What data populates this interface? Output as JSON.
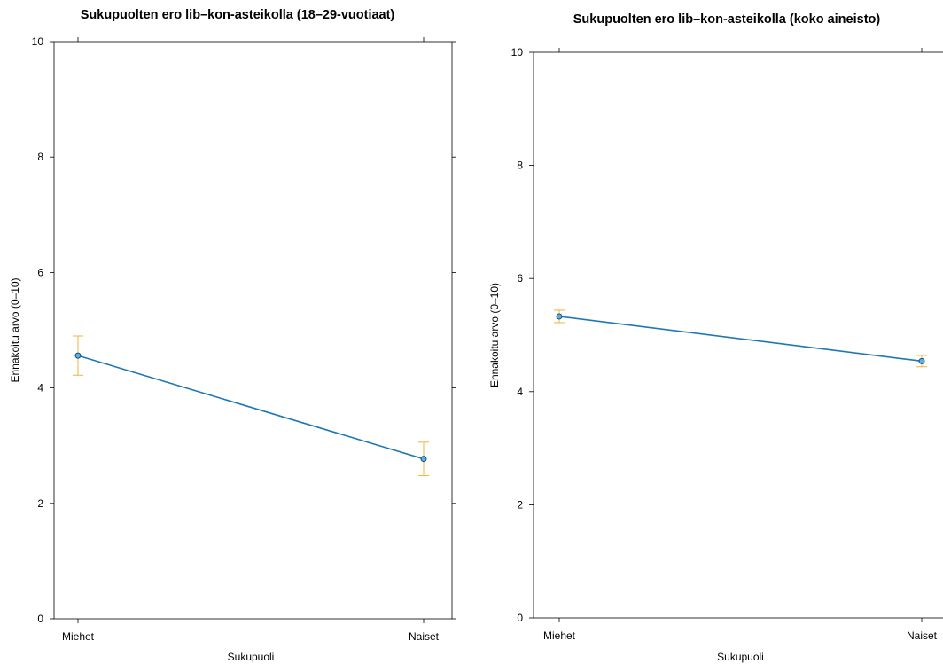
{
  "chart_data": [
    {
      "type": "line",
      "title": "Sukupuolten ero lib–kon-asteikolla (18–29-vuotiaat)",
      "xlabel": "Sukupuoli",
      "ylabel": "Ennakoitu arvo (0–10)",
      "categories": [
        "Miehet",
        "Naiset"
      ],
      "values": [
        4.56,
        2.77
      ],
      "ci_low": [
        4.22,
        2.48
      ],
      "ci_high": [
        4.9,
        3.06
      ],
      "ylim": [
        0,
        10
      ],
      "yticks": [
        "0",
        "2",
        "4",
        "6",
        "8",
        "10"
      ],
      "grid": false
    },
    {
      "type": "line",
      "title": "Sukupuolten ero lib–kon-asteikolla (koko aineisto)",
      "xlabel": "Sukupuoli",
      "ylabel": "Ennakoitu arvo (0–10)",
      "categories": [
        "Miehet",
        "Naiset"
      ],
      "values": [
        5.33,
        4.54
      ],
      "ci_low": [
        5.22,
        4.44
      ],
      "ci_high": [
        5.44,
        4.64
      ],
      "ylim": [
        0,
        10
      ],
      "yticks": [
        "0",
        "2",
        "4",
        "6",
        "8",
        "10"
      ],
      "grid": false
    }
  ],
  "colors": {
    "line": "#1f77b4",
    "point": "#1f77b4",
    "errorbar": "#f0b43c",
    "axis": "#000000"
  }
}
